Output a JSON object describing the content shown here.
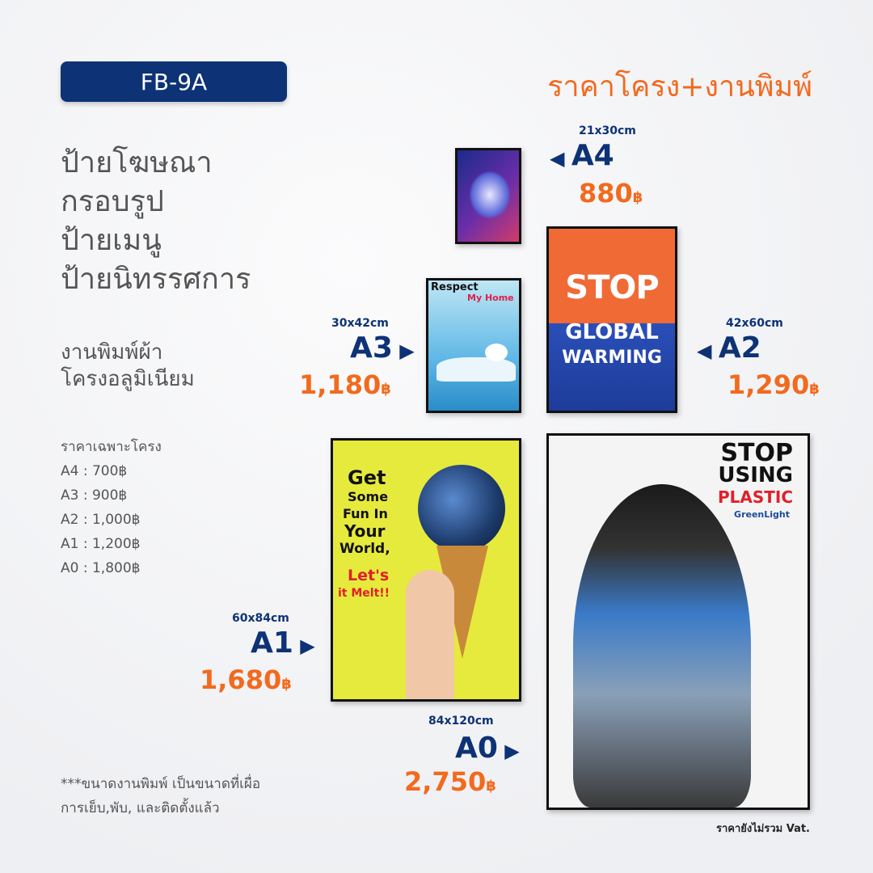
{
  "badge": "FB-9A",
  "title": "ราคาโครง+งานพิมพ์",
  "headings": [
    "ป้ายโฆษณา",
    "กรอบรูป",
    "ป้ายเมนู",
    "ป้ายนิทรรศการ"
  ],
  "subheadings": [
    "งานพิมพ์ผ้า",
    "โครงอลูมิเนียม"
  ],
  "frame_price_title": "ราคาเฉพาะโครง",
  "frame_prices": [
    "A4 : 700฿",
    "A3 : 900฿",
    "A2 : 1,000฿",
    "A1 : 1,200฿",
    "A0 : 1,800฿"
  ],
  "note": [
    "***ขนาดงานพิมพ์ เป็นขนาดที่เผื่อ",
    "การเย็บ,พับ, และติดตั้งแล้ว"
  ],
  "vat": "ราคายังไม่รวม Vat.",
  "currency": "฿",
  "sizes": {
    "a4": {
      "dim": "21x30cm",
      "code": "A4",
      "price": "880"
    },
    "a3": {
      "dim": "30x42cm",
      "code": "A3",
      "price": "1,180"
    },
    "a2": {
      "dim": "42x60cm",
      "code": "A2",
      "price": "1,290"
    },
    "a1": {
      "dim": "60x84cm",
      "code": "A1",
      "price": "1,680"
    },
    "a0": {
      "dim": "84x120cm",
      "code": "A0",
      "price": "2,750"
    }
  },
  "posters": {
    "a3": [
      "Respect",
      "My Home"
    ],
    "a2": [
      "STOP",
      "GLOBAL",
      "WARMING"
    ],
    "a1": [
      "Get",
      "Some",
      "Fun In",
      "Your",
      "World,",
      "Let's",
      "it Melt!!"
    ],
    "a0": [
      "STOP",
      "USING",
      "PLASTIC",
      "GreenLight"
    ]
  },
  "colors": {
    "navy": "#0d3275",
    "orange": "#f26a1e",
    "gray_text": "#555555"
  }
}
